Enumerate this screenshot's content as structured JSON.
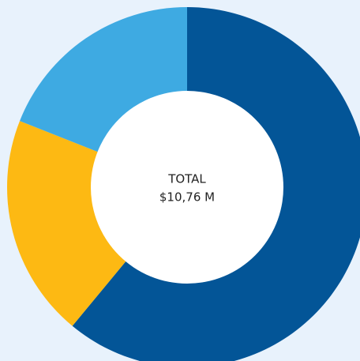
{
  "chart_data": {
    "type": "donut",
    "categories": [
      null,
      null,
      null
    ],
    "values": [
      61,
      20,
      19
    ],
    "colors": [
      "#035597",
      "#fdb913",
      "#3eaae2"
    ],
    "center_title": "TOTAL",
    "center_value": "$10,76 M"
  }
}
